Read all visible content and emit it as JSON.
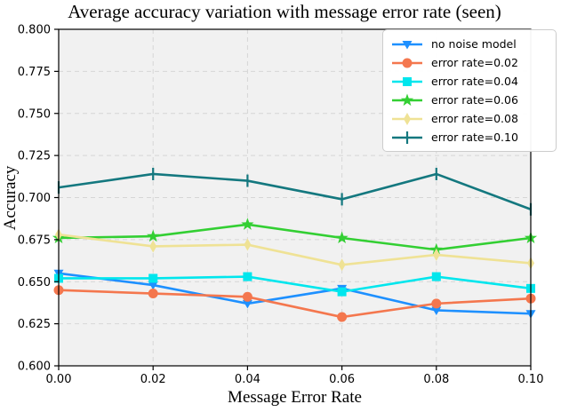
{
  "title": "Average accuracy variation with message error rate (seen)",
  "chart_data": {
    "type": "line",
    "title": "Average accuracy variation with message error rate (seen)",
    "xlabel": "Message Error Rate",
    "ylabel": "Accuracy",
    "xlim": [
      0.0,
      0.1
    ],
    "ylim": [
      0.6,
      0.8
    ],
    "x_tick_labels": [
      "0.00",
      "0.02",
      "0.04",
      "0.06",
      "0.08",
      "0.10"
    ],
    "y_tick_labels": [
      "0.600",
      "0.625",
      "0.650",
      "0.675",
      "0.700",
      "0.725",
      "0.750",
      "0.775",
      "0.800"
    ],
    "grid": true,
    "grid_style": "dashed",
    "legend_position": "upper right",
    "x": [
      0.0,
      0.02,
      0.04,
      0.06,
      0.08,
      0.1
    ],
    "series": [
      {
        "name": "no noise model",
        "color": "#1e90ff",
        "marker": "triangle-down",
        "values": [
          0.655,
          0.648,
          0.637,
          0.646,
          0.633,
          0.631
        ]
      },
      {
        "name": "error rate=0.02",
        "color": "#f4774e",
        "marker": "circle",
        "values": [
          0.645,
          0.643,
          0.641,
          0.629,
          0.637,
          0.64
        ]
      },
      {
        "name": "error rate=0.04",
        "color": "#00e6ed",
        "marker": "square",
        "values": [
          0.652,
          0.652,
          0.653,
          0.644,
          0.653,
          0.646
        ]
      },
      {
        "name": "error rate=0.06",
        "color": "#33cf33",
        "marker": "star",
        "values": [
          0.676,
          0.677,
          0.684,
          0.676,
          0.669,
          0.676
        ]
      },
      {
        "name": "error rate=0.08",
        "color": "#efe295",
        "marker": "diamond",
        "values": [
          0.678,
          0.671,
          0.672,
          0.66,
          0.666,
          0.661
        ]
      },
      {
        "name": "error rate=0.10",
        "color": "#14787f",
        "marker": "vline",
        "values": [
          0.706,
          0.714,
          0.71,
          0.699,
          0.714,
          0.693
        ]
      }
    ],
    "colors": {
      "plot_background": "#f1f1f1",
      "figure_background": "#ffffff",
      "grid": "#d6d6d6",
      "spine": "#000000",
      "text": "#000000"
    }
  }
}
